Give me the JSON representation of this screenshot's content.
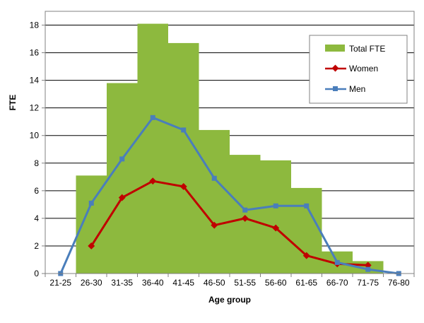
{
  "chart_data": {
    "type": "bar",
    "title": "",
    "xlabel": "Age group",
    "ylabel": "FTE",
    "ylim": [
      0,
      19
    ],
    "yticks": [
      0,
      2,
      4,
      6,
      8,
      10,
      12,
      14,
      16,
      18
    ],
    "grid": true,
    "legend_position": "top-right",
    "categories": [
      "21-25",
      "26-30",
      "31-35",
      "36-40",
      "41-45",
      "46-50",
      "51-55",
      "56-60",
      "61-65",
      "66-70",
      "71-75",
      "76-80"
    ],
    "series": [
      {
        "name": "Total FTE",
        "type": "bar",
        "color": "#8db93e",
        "values": [
          0,
          7.1,
          13.8,
          18.1,
          16.7,
          10.4,
          8.6,
          8.2,
          6.2,
          1.6,
          0.9,
          0
        ]
      },
      {
        "name": "Women",
        "type": "line",
        "marker": "diamond",
        "color": "#c00000",
        "values": [
          null,
          2.0,
          5.5,
          6.7,
          6.3,
          3.5,
          4.0,
          3.3,
          1.3,
          0.7,
          0.6,
          null
        ]
      },
      {
        "name": "Men",
        "type": "line",
        "marker": "square",
        "color": "#4a7ebb",
        "values": [
          0,
          5.1,
          8.3,
          11.3,
          10.4,
          6.9,
          4.6,
          4.9,
          4.9,
          0.8,
          0.3,
          0
        ]
      }
    ]
  }
}
